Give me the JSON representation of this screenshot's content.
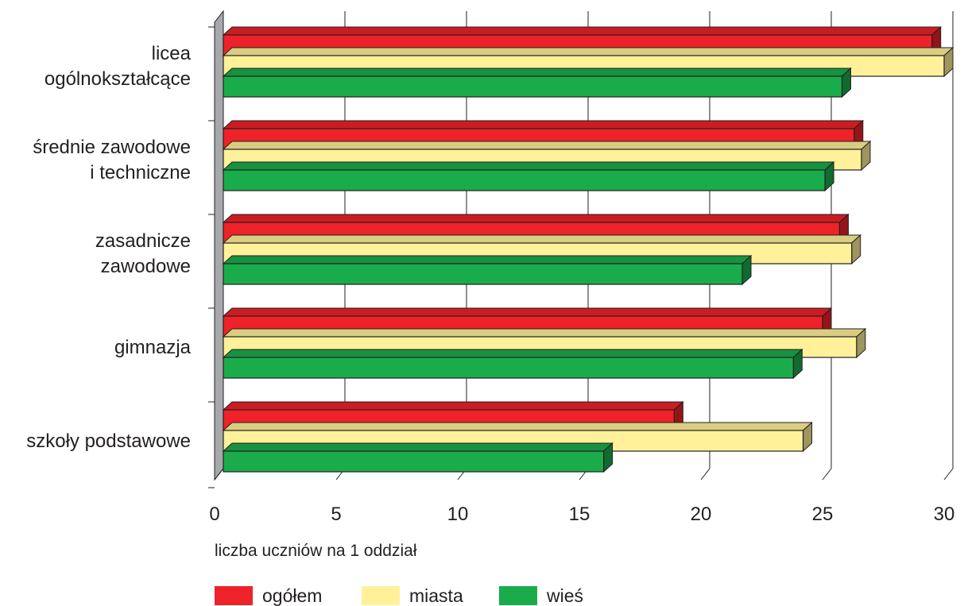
{
  "chart_data": {
    "type": "bar",
    "orientation": "horizontal",
    "style": "3d",
    "categories": [
      [
        "licea",
        "ogólnokształcące"
      ],
      [
        "średnie zawodowe",
        "i techniczne"
      ],
      [
        "zasadnicze",
        "zawodowe"
      ],
      [
        "gimnazja"
      ],
      [
        "szkoły podstawowe"
      ]
    ],
    "series": [
      {
        "name": "ogółem",
        "color": "#ee2229",
        "values": [
          29.5,
          26.3,
          25.7,
          25.0,
          18.9
        ]
      },
      {
        "name": "miasta",
        "color": "#fff199",
        "values": [
          30.0,
          26.6,
          26.2,
          26.4,
          24.2
        ]
      },
      {
        "name": "wieś",
        "color": "#1aac4b",
        "values": [
          25.8,
          25.1,
          21.7,
          23.8,
          16.0
        ]
      }
    ],
    "xlim": [
      0,
      30
    ],
    "xticks": [
      0,
      5,
      10,
      15,
      20,
      25,
      30
    ],
    "xticklabels": [
      "0",
      "5",
      "10",
      "15",
      "20",
      "25",
      "30"
    ],
    "xlabel": "liczba uczniów na 1 oddział",
    "grid": true,
    "legend_position": "bottom-left"
  }
}
